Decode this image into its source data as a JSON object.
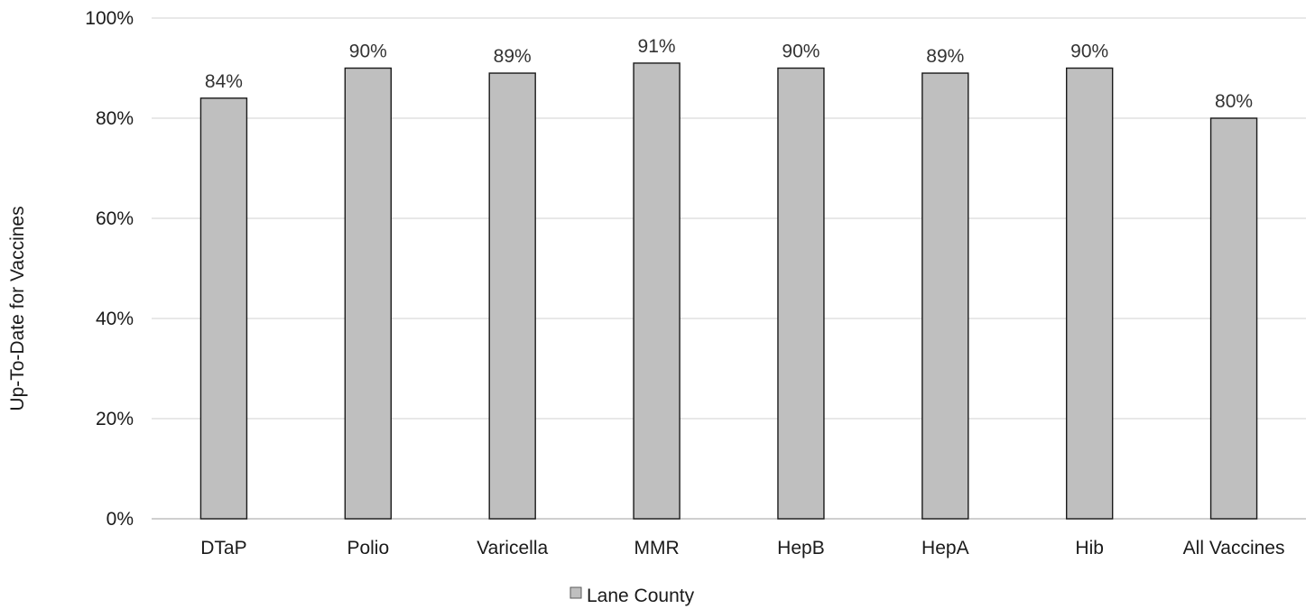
{
  "chart_data": {
    "type": "bar",
    "title": "",
    "xlabel": "",
    "ylabel": "Up-To-Date for Vaccines",
    "ylim": [
      0,
      100
    ],
    "yticks": [
      "0%",
      "20%",
      "40%",
      "60%",
      "80%",
      "100%"
    ],
    "ytick_values": [
      0,
      20,
      40,
      60,
      80,
      100
    ],
    "grid": true,
    "legend_position": "bottom",
    "categories": [
      "DTaP",
      "Polio",
      "Varicella",
      "MMR",
      "HepB",
      "HepA",
      "Hib",
      "All Vaccines"
    ],
    "series": [
      {
        "name": "Lane County",
        "values": [
          84,
          90,
          89,
          91,
          90,
          89,
          90,
          80
        ],
        "data_labels": [
          "84%",
          "90%",
          "89%",
          "91%",
          "90%",
          "89%",
          "90%",
          "80%"
        ],
        "color": "#bfbfbf"
      }
    ]
  }
}
